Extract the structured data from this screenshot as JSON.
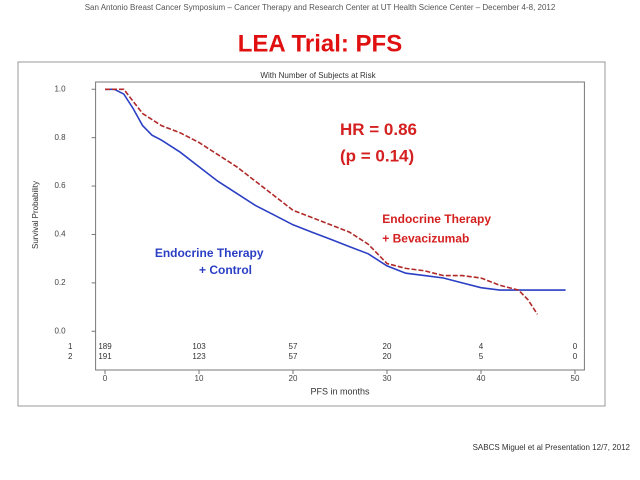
{
  "header": "San Antonio Breast Cancer Symposium – Cancer Therapy and Research Center at UT Health Science Center – December 4-8, 2012",
  "footer": "SABCS Miguel et al Presentation 12/7, 2012",
  "chart_data": {
    "type": "line",
    "title": "LEA Trial: PFS",
    "subtitle": "With Number of Subjects at Risk",
    "x_label": "PFS in months",
    "y_label": "Survival Probability",
    "xlim": [
      -1,
      51
    ],
    "ylim": [
      -0.16,
      1.03
    ],
    "xticks": [
      0,
      10,
      20,
      30,
      40,
      50
    ],
    "yticks": [
      {
        "value": 0,
        "label": "0.0"
      },
      0.2,
      0.4,
      0.6,
      0.8,
      {
        "value": 1,
        "label": "1.0"
      }
    ],
    "series": [
      {
        "color": "#2b3fc4",
        "x": [
          0,
          1,
          2,
          3,
          4,
          5,
          6,
          8,
          10,
          12,
          14,
          16,
          18,
          20,
          22,
          24,
          26,
          28,
          30,
          32,
          34,
          36,
          38,
          40,
          42,
          46,
          49
        ],
        "values": [
          1.0,
          1.0,
          0.98,
          0.92,
          0.85,
          0.81,
          0.79,
          0.74,
          0.68,
          0.62,
          0.57,
          0.52,
          0.48,
          0.44,
          0.41,
          0.38,
          0.35,
          0.32,
          0.27,
          0.24,
          0.23,
          0.22,
          0.2,
          0.18,
          0.17,
          0.17,
          0.17
        ]
      },
      {
        "color": "#b02a2a",
        "x": [
          0,
          2,
          3,
          4,
          6,
          8,
          10,
          12,
          14,
          16,
          18,
          20,
          22,
          24,
          26,
          28,
          30,
          32,
          34,
          36,
          38,
          40,
          42,
          44,
          45,
          46
        ],
        "values": [
          1.0,
          1.0,
          0.95,
          0.9,
          0.85,
          0.82,
          0.78,
          0.73,
          0.68,
          0.62,
          0.56,
          0.5,
          0.47,
          0.44,
          0.41,
          0.36,
          0.28,
          0.26,
          0.25,
          0.23,
          0.23,
          0.22,
          0.19,
          0.17,
          0.13,
          0.07
        ]
      }
    ],
    "annotations": [
      {
        "text": "HR = 0.86",
        "color": "#d42020",
        "size": 17,
        "x": 25,
        "y": 0.83
      },
      {
        "text": "(p = 0.14)",
        "color": "#d42020",
        "size": 17,
        "x": 25,
        "y": 0.72
      },
      {
        "text": "Endocrine Therapy",
        "color": "#d42020",
        "size": 12,
        "x": 29.5,
        "y": 0.46
      },
      {
        "text": "+ Bevacizumab",
        "color": "#d42020",
        "size": 12,
        "x": 29.5,
        "y": 0.38
      },
      {
        "text": "Endocrine Therapy",
        "color": "#2b3fc4",
        "size": 12,
        "x": 5.3,
        "y": 0.32
      },
      {
        "text": "+ Control",
        "color": "#2b3fc4",
        "size": 12,
        "x": 10,
        "y": 0.25
      }
    ],
    "risk_table": [
      {
        "label": "1",
        "values": [
          189,
          103,
          57,
          20,
          4,
          0
        ]
      },
      {
        "label": "2",
        "values": [
          191,
          123,
          57,
          20,
          5,
          0
        ]
      }
    ]
  }
}
